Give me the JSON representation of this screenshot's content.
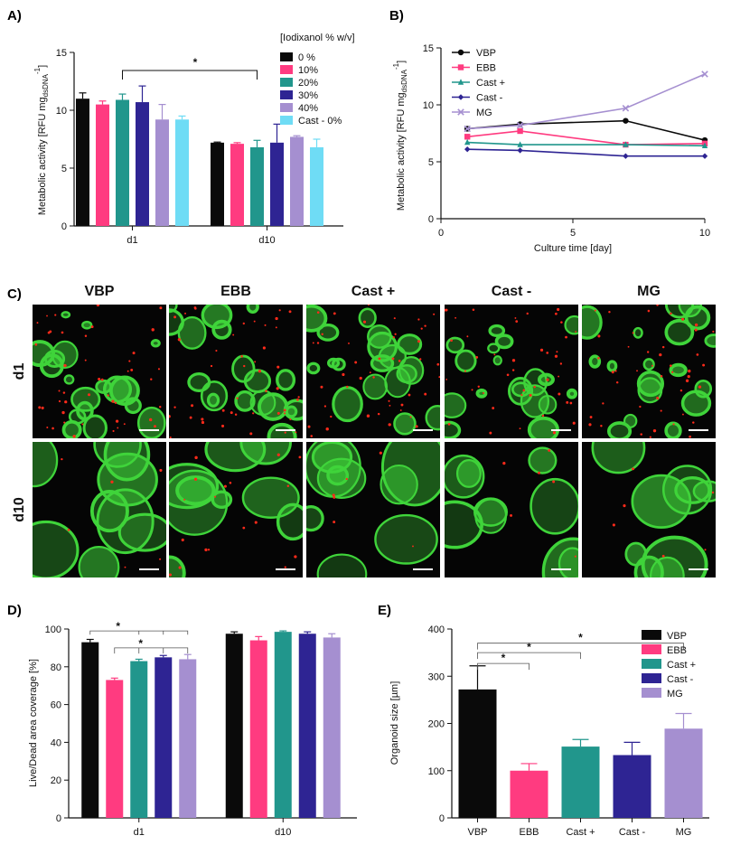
{
  "panels": {
    "A": {
      "letter": "A)",
      "ylabel": "Metabolic activity [RFU mg",
      "ylabel_sub": "dsDNA",
      "ylabel_sup": "-1",
      "ylabel_end": "]",
      "legend_title": "[Iodixanol % w/v]",
      "significance": "*"
    },
    "B": {
      "letter": "B)",
      "ylabel": "Metabolic activity [RFU mg",
      "ylabel_sub": "dsDNA",
      "ylabel_sup": "-1",
      "ylabel_end": "]"
    },
    "C": {
      "letter": "C)",
      "columns": [
        "VBP",
        "EBB",
        "Cast +",
        "Cast -",
        "MG"
      ],
      "rows": [
        "d1",
        "d10"
      ]
    },
    "D": {
      "letter": "D)",
      "significance": [
        "*",
        "*"
      ]
    },
    "E": {
      "letter": "E)",
      "significance": [
        "*",
        "*",
        "*"
      ]
    }
  },
  "colors": {
    "black": "#0a0a0a",
    "pink": "#ff3b80",
    "teal": "#21968c",
    "navy": "#2e2493",
    "lavender": "#a58fd0",
    "cyan": "#6fdcf5",
    "micro_bg": "#050505",
    "micro_green": "#3fd43a",
    "micro_red": "#ff2a1a"
  },
  "chart_data": [
    {
      "panel": "A",
      "type": "bar",
      "categories": [
        "d1",
        "d10"
      ],
      "xlabel": "",
      "ylabel": "Metabolic activity [RFU mg dsDNA -1]",
      "ylim": [
        0,
        15
      ],
      "yticks": [
        0,
        5,
        10,
        15
      ],
      "legend_title": "[Iodixanol % w/v]",
      "legend_position": "top-right",
      "series": [
        {
          "name": "0 %",
          "color": "#0a0a0a",
          "values": [
            11.0,
            7.2
          ],
          "errors": [
            0.5,
            0.05
          ]
        },
        {
          "name": "10%",
          "color": "#ff3b80",
          "values": [
            10.5,
            7.1
          ],
          "errors": [
            0.3,
            0.1
          ]
        },
        {
          "name": "20%",
          "color": "#21968c",
          "values": [
            10.9,
            6.8
          ],
          "errors": [
            0.5,
            0.6
          ]
        },
        {
          "name": "30%",
          "color": "#2e2493",
          "values": [
            10.7,
            7.2
          ],
          "errors": [
            1.4,
            1.6
          ]
        },
        {
          "name": "40%",
          "color": "#a58fd0",
          "values": [
            9.2,
            7.7
          ],
          "errors": [
            1.3,
            0.1
          ]
        },
        {
          "name": "Cast - 0%",
          "color": "#6fdcf5",
          "values": [
            9.2,
            6.8
          ],
          "errors": [
            0.3,
            0.7
          ]
        }
      ]
    },
    {
      "panel": "B",
      "type": "line",
      "xlabel": "Culture time [day]",
      "ylabel": "Metabolic activity [RFU mg dsDNA -1]",
      "xlim": [
        0,
        10
      ],
      "ylim": [
        0,
        15
      ],
      "xticks": [
        0,
        5,
        10
      ],
      "yticks": [
        0,
        5,
        10,
        15
      ],
      "x": [
        1,
        3,
        7,
        10
      ],
      "legend_position": "top-left",
      "series": [
        {
          "name": "VBP",
          "color": "#0a0a0a",
          "marker": "circle",
          "values": [
            7.9,
            8.3,
            8.6,
            6.9
          ]
        },
        {
          "name": "EBB",
          "color": "#ff3b80",
          "marker": "square",
          "values": [
            7.2,
            7.7,
            6.5,
            6.6
          ]
        },
        {
          "name": "Cast +",
          "color": "#21968c",
          "marker": "triangle",
          "values": [
            6.7,
            6.5,
            6.5,
            6.4
          ]
        },
        {
          "name": "Cast -",
          "color": "#2e2493",
          "marker": "diamond",
          "values": [
            6.1,
            6.0,
            5.5,
            5.5
          ]
        },
        {
          "name": "MG",
          "color": "#a58fd0",
          "marker": "x",
          "values": [
            7.9,
            8.2,
            9.7,
            12.7
          ]
        }
      ]
    },
    {
      "panel": "D",
      "type": "bar",
      "categories": [
        "d1",
        "d10"
      ],
      "xlabel": "",
      "ylabel": "Live/Dead area coverage [%]",
      "ylim": [
        0,
        100
      ],
      "yticks": [
        0,
        20,
        40,
        60,
        80,
        100
      ],
      "series": [
        {
          "name": "VBP",
          "color": "#0a0a0a",
          "values": [
            93.0,
            97.5
          ],
          "errors": [
            1.5,
            1.0
          ]
        },
        {
          "name": "EBB",
          "color": "#ff3b80",
          "values": [
            73.0,
            94.0
          ],
          "errors": [
            1.0,
            2.0
          ]
        },
        {
          "name": "Cast +",
          "color": "#21968c",
          "values": [
            83.0,
            98.5
          ],
          "errors": [
            1.0,
            0.5
          ]
        },
        {
          "name": "Cast -",
          "color": "#2e2493",
          "values": [
            85.0,
            97.5
          ],
          "errors": [
            1.0,
            1.0
          ]
        },
        {
          "name": "MG",
          "color": "#a58fd0",
          "values": [
            84.0,
            95.5
          ],
          "errors": [
            2.5,
            2.0
          ]
        }
      ]
    },
    {
      "panel": "E",
      "type": "bar",
      "categories": [
        "VBP",
        "EBB",
        "Cast +",
        "Cast -",
        "MG"
      ],
      "xlabel": "",
      "ylabel": "Organoid size [µm]",
      "ylim": [
        0,
        400
      ],
      "yticks": [
        0,
        100,
        200,
        300,
        400
      ],
      "legend_position": "top-right",
      "legend": [
        "VBP",
        "EBB",
        "Cast +",
        "Cast -",
        "MG"
      ],
      "values": [
        272,
        100,
        151,
        133,
        189
      ],
      "errors": [
        50,
        15,
        15,
        27,
        32
      ],
      "colors": [
        "#0a0a0a",
        "#ff3b80",
        "#21968c",
        "#2e2493",
        "#a58fd0"
      ]
    }
  ]
}
